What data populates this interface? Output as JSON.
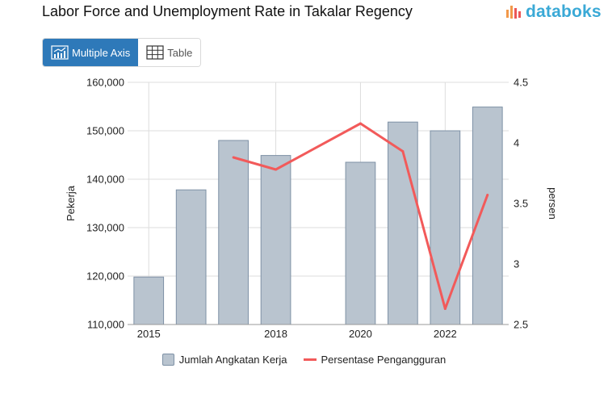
{
  "title": "Labor Force and Unemployment Rate in Takalar Regency",
  "brand": {
    "name": "databoks",
    "icon": "databoks-logo-icon",
    "color": "#3aa9d6"
  },
  "tabs": [
    {
      "label": "Multiple Axis",
      "icon": "multi-axis-chart-icon",
      "active": true
    },
    {
      "label": "Table",
      "icon": "table-icon",
      "active": false
    }
  ],
  "colors": {
    "bar_fill": "#b9c4cf",
    "bar_stroke": "#7e91a6",
    "line": "#f25a5a",
    "active_tab": "#2e79b9"
  },
  "chart_data": {
    "type": "bar",
    "x": [
      2015,
      2016,
      2017,
      2018,
      2019,
      2020,
      2021,
      2022,
      2023
    ],
    "x_tick_labels": [
      "2015",
      "2018",
      "2020",
      "2022"
    ],
    "x_tick_values": [
      2015,
      2018,
      2020,
      2022
    ],
    "series": [
      {
        "name": "Jumlah Angkatan Kerja",
        "type": "bar",
        "axis": "left",
        "points": [
          {
            "x": 2015,
            "y": 119800
          },
          {
            "x": 2016,
            "y": 137800
          },
          {
            "x": 2017,
            "y": 148000
          },
          {
            "x": 2018,
            "y": 144900
          },
          {
            "x": 2020,
            "y": 143500
          },
          {
            "x": 2021,
            "y": 151800
          },
          {
            "x": 2022,
            "y": 150000
          },
          {
            "x": 2023,
            "y": 154900
          }
        ]
      },
      {
        "name": "Persentase Pengangguran",
        "type": "line",
        "axis": "right",
        "points": [
          {
            "x": 2017,
            "y": 3.88
          },
          {
            "x": 2018,
            "y": 3.78
          },
          {
            "x": 2020,
            "y": 4.16
          },
          {
            "x": 2021,
            "y": 3.93
          },
          {
            "x": 2022,
            "y": 2.63
          },
          {
            "x": 2023,
            "y": 3.57
          }
        ]
      }
    ],
    "ylabel_left": "Pekerja",
    "ylabel_right": "persen",
    "ylim_left": [
      110000,
      160000
    ],
    "ylim_right": [
      2.5,
      4.5
    ],
    "y_ticks_left": [
      "110,000",
      "120,000",
      "130,000",
      "140,000",
      "150,000",
      "160,000"
    ],
    "y_tick_values_left": [
      110000,
      120000,
      130000,
      140000,
      150000,
      160000
    ],
    "y_ticks_right": [
      "2.5",
      "3",
      "3.5",
      "4",
      "4.5"
    ],
    "y_tick_values_right": [
      2.5,
      3,
      3.5,
      4,
      4.5
    ],
    "grid": true,
    "legend_position": "bottom"
  }
}
